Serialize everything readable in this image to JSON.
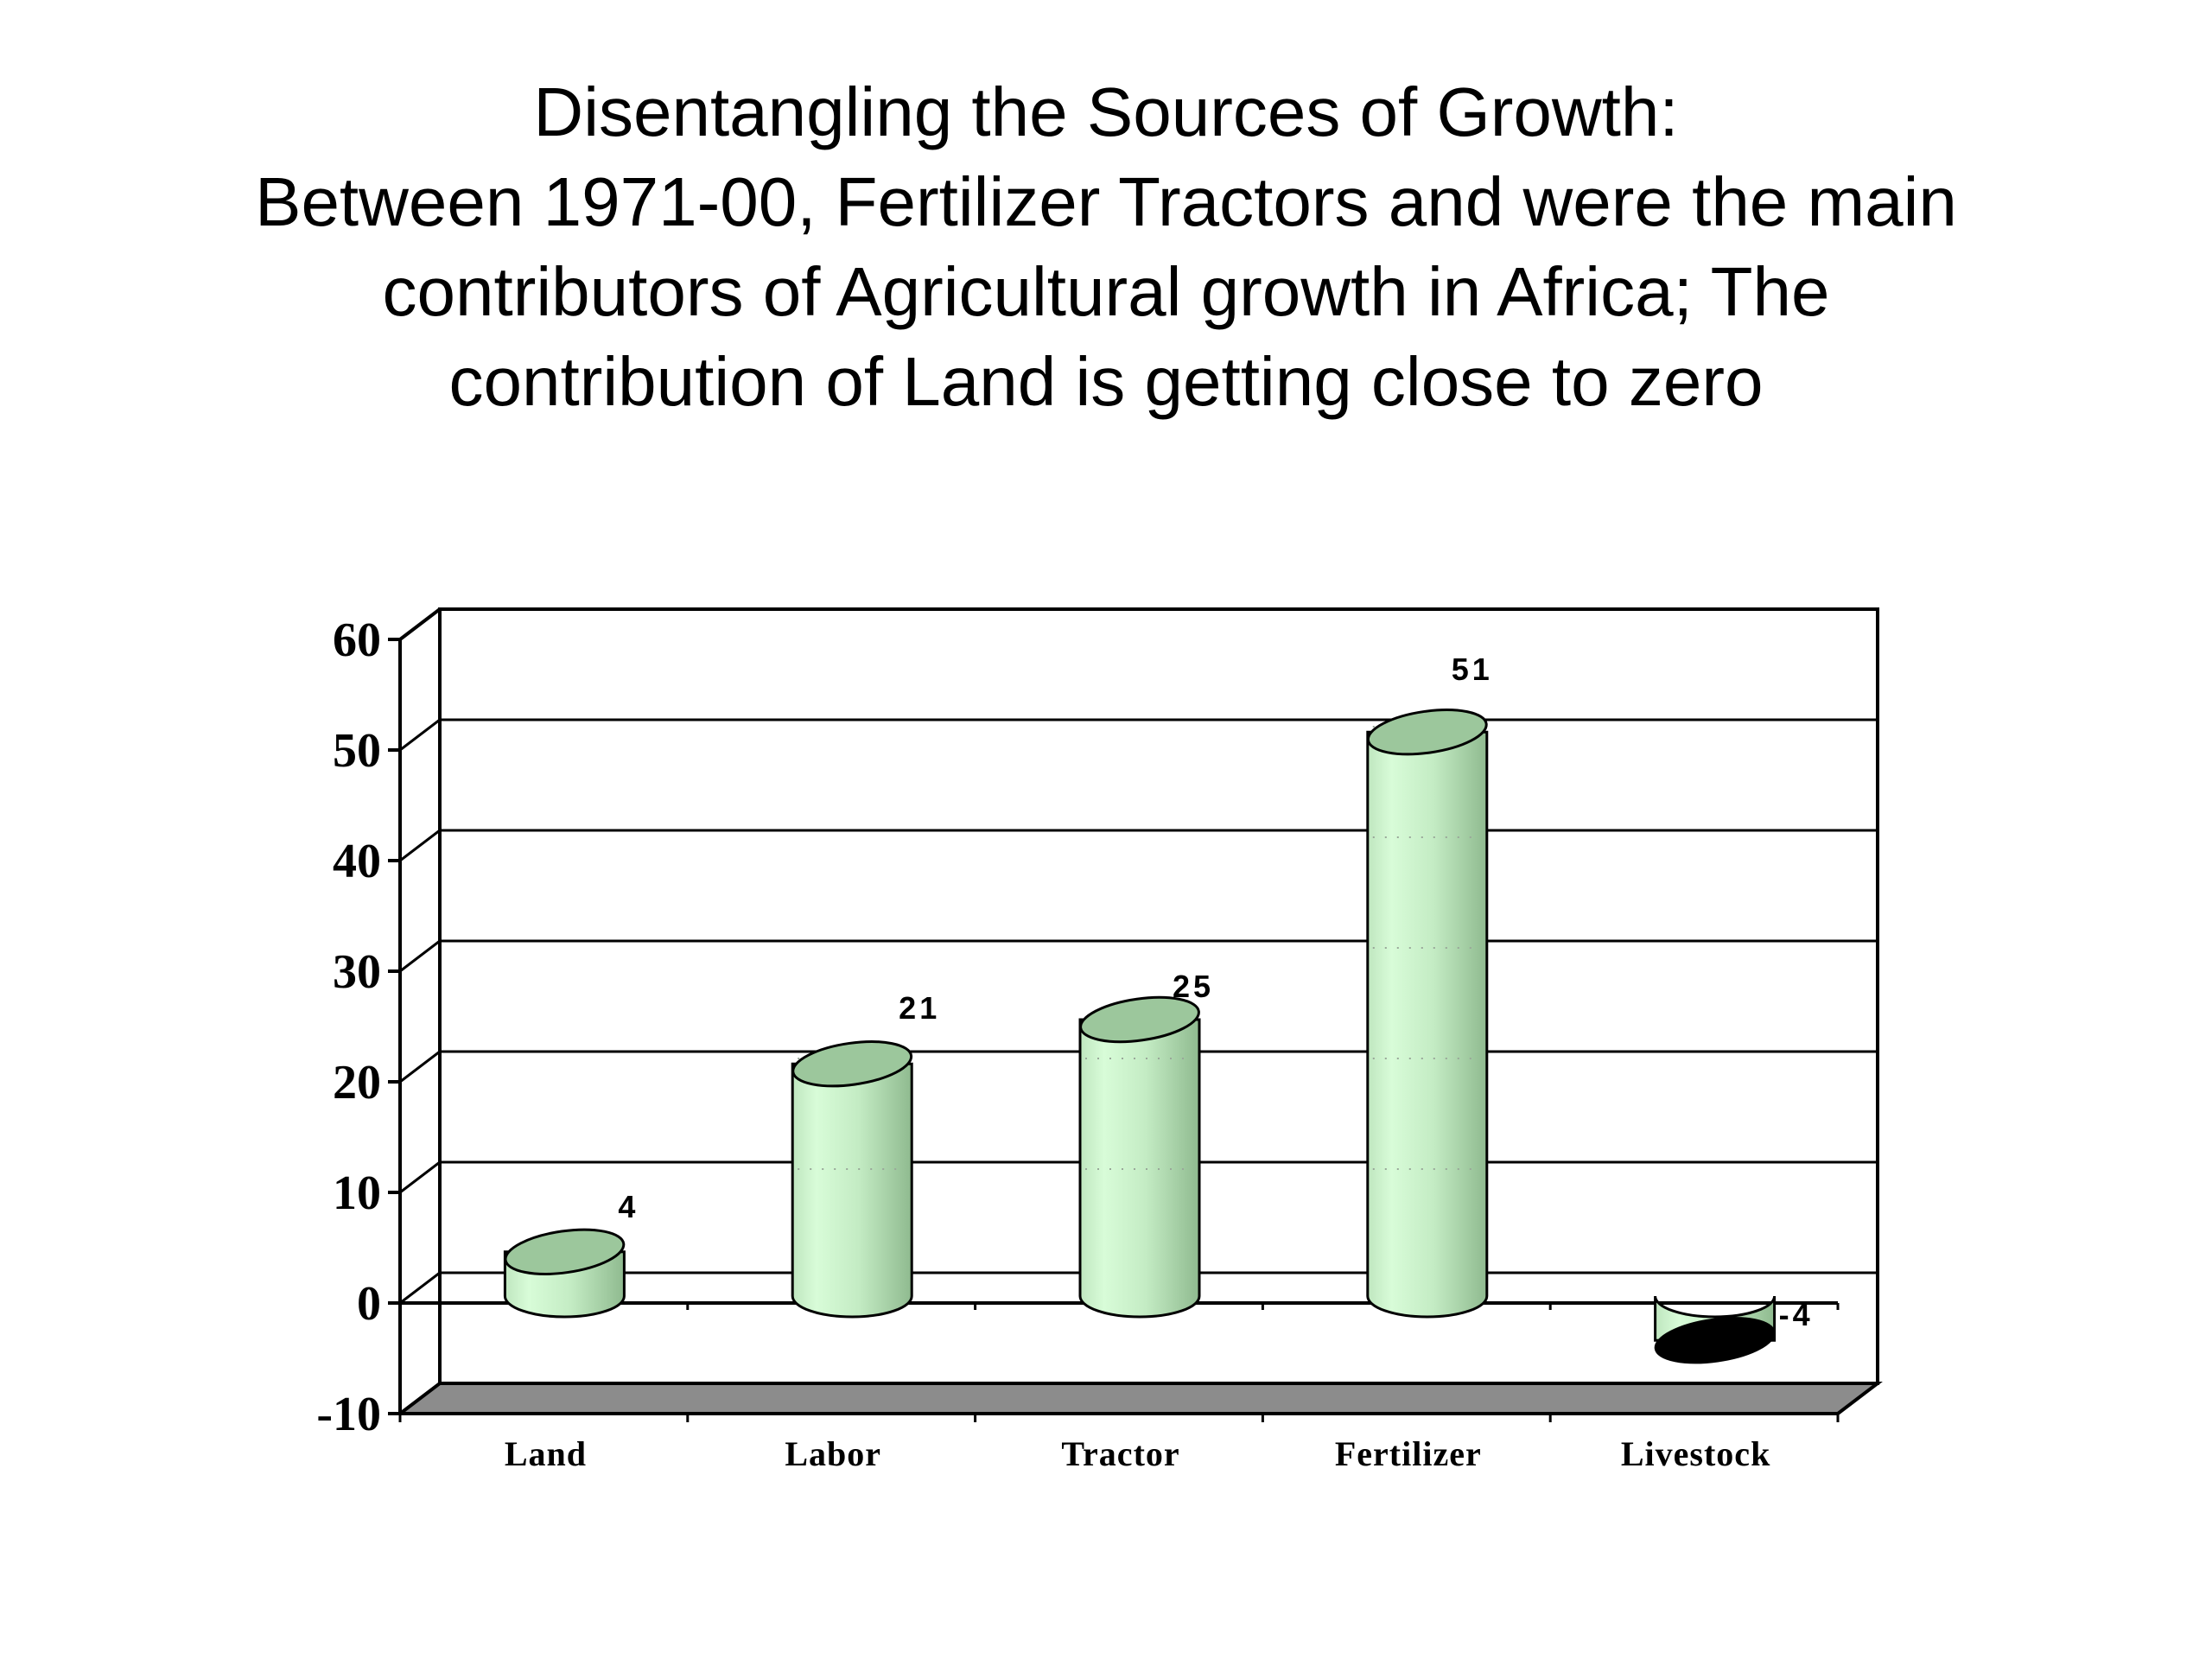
{
  "title_lines": [
    "Disentangling the Sources of Growth:",
    "Between 1971-00, Fertilizer Tractors and were the main",
    "contributors of Agricultural growth in Africa; The",
    "contribution of Land is getting close to zero"
  ],
  "chart_data": {
    "type": "bar",
    "style": "3d-cylinder",
    "categories": [
      "Land",
      "Labor",
      "Tractor",
      "Fertilizer",
      "Livestock"
    ],
    "values": [
      4,
      21,
      25,
      51,
      -4
    ],
    "data_labels": [
      "4",
      "21",
      "25",
      "51",
      "-4"
    ],
    "ylim": [
      -10,
      60
    ],
    "yticks": [
      -10,
      0,
      10,
      20,
      30,
      40,
      50,
      60
    ],
    "grid": true,
    "legend": "none",
    "colors": {
      "bar_light": "#d6fbd6",
      "bar_mid": "#bfe8c0",
      "bar_dark": "#8fbc8f",
      "bar_top": "#9cc79c",
      "floor": "#8c8c8c",
      "axis": "#000000"
    }
  }
}
